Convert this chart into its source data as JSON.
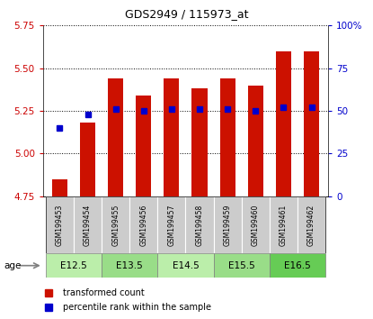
{
  "title": "GDS2949 / 115973_at",
  "samples": [
    "GSM199453",
    "GSM199454",
    "GSM199455",
    "GSM199456",
    "GSM199457",
    "GSM199458",
    "GSM199459",
    "GSM199460",
    "GSM199461",
    "GSM199462"
  ],
  "transformed_counts": [
    4.85,
    5.18,
    5.44,
    5.34,
    5.44,
    5.38,
    5.44,
    5.4,
    5.6,
    5.6
  ],
  "percentile_ranks": [
    40,
    48,
    51,
    50,
    51,
    51,
    51,
    50,
    52,
    52
  ],
  "age_groups": [
    {
      "label": "E12.5",
      "start": 0,
      "end": 1,
      "color": "#bbeeaa"
    },
    {
      "label": "E13.5",
      "start": 2,
      "end": 3,
      "color": "#99dd88"
    },
    {
      "label": "E14.5",
      "start": 4,
      "end": 5,
      "color": "#bbeeaa"
    },
    {
      "label": "E15.5",
      "start": 6,
      "end": 7,
      "color": "#99dd88"
    },
    {
      "label": "E16.5",
      "start": 8,
      "end": 9,
      "color": "#66cc55"
    }
  ],
  "ylim": [
    4.75,
    5.75
  ],
  "yticks": [
    4.75,
    5.0,
    5.25,
    5.5,
    5.75
  ],
  "right_yticks": [
    0,
    25,
    50,
    75,
    100
  ],
  "right_yticklabels": [
    "0",
    "25",
    "50",
    "75",
    "100%"
  ],
  "bar_color": "#cc1100",
  "percentile_color": "#0000cc",
  "bar_width": 0.55,
  "sample_bg_color": "#cccccc",
  "tick_color_left": "#cc0000",
  "tick_color_right": "#0000cc"
}
